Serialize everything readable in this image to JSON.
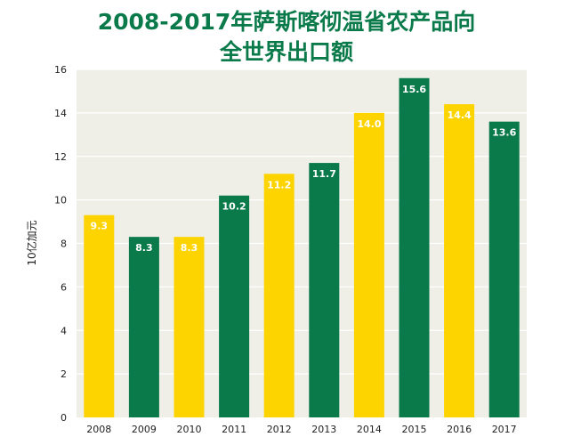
{
  "chart_data": {
    "type": "bar",
    "title_lines": [
      "2008-2017年萨斯喀彻温省农产品向",
      "全世界出口额"
    ],
    "ylabel": "10亿加元",
    "xlabel": "",
    "categories": [
      "2008",
      "2009",
      "2010",
      "2011",
      "2012",
      "2013",
      "2014",
      "2015",
      "2016",
      "2017"
    ],
    "values": [
      9.3,
      8.3,
      8.3,
      10.2,
      11.2,
      11.7,
      14.0,
      15.6,
      14.4,
      13.6
    ],
    "value_labels": [
      "9.3",
      "8.3",
      "8.3",
      "10.2",
      "11.2",
      "11.7",
      "14.0",
      "15.6",
      "14.4",
      "13.6"
    ],
    "ylim": [
      0,
      16
    ],
    "yticks": [
      "0",
      "2",
      "4",
      "6",
      "8",
      "10",
      "12",
      "14",
      "16"
    ],
    "grid": true,
    "legend": "none",
    "colors": {
      "yellow": "#fdd300",
      "green": "#0b7a4a",
      "plot_background": "#efefe8",
      "gridline": "#ffffff",
      "title": "#0b7a4a"
    },
    "bar_color_keys": [
      "yellow",
      "green",
      "yellow",
      "green",
      "yellow",
      "green",
      "yellow",
      "green",
      "yellow",
      "green"
    ]
  }
}
